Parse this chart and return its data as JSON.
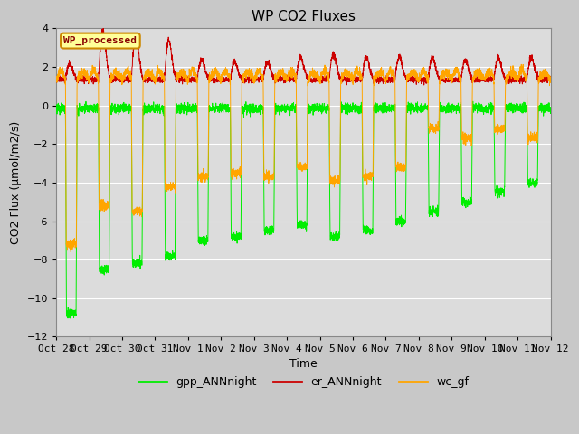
{
  "title": "WP CO2 Fluxes",
  "xlabel": "Time",
  "ylabel": "CO2 Flux (μmol/m2/s)",
  "ylim": [
    -12,
    4
  ],
  "yticks": [
    -12,
    -10,
    -8,
    -6,
    -4,
    -2,
    0,
    2,
    4
  ],
  "xlim": [
    0,
    15
  ],
  "num_points": 4320,
  "fig_bg_color": "#c8c8c8",
  "plot_bg_color": "#dcdcdc",
  "gpp_color": "#00ee00",
  "er_color": "#cc0000",
  "wc_color": "#ffa500",
  "grid_color": "#ffffff",
  "legend_label_bg": "#ffff99",
  "legend_label_border": "#cc8800",
  "legend_label_text": "WP_processed",
  "legend_label_text_color": "#880000",
  "title_fontsize": 11,
  "axis_label_fontsize": 9,
  "tick_fontsize": 8,
  "legend_fontsize": 9,
  "tick_labels": [
    "Oct 28",
    "Oct 29",
    "Oct 30",
    "Oct 31",
    "Nov 1",
    "Nov 2",
    "Nov 3",
    "Nov 4",
    "Nov 5",
    "Nov 6",
    "Nov 7",
    "Nov 8",
    "Nov 9",
    "Nov 10",
    "Nov 11",
    "Nov 12"
  ],
  "tick_positions": [
    0,
    1,
    2,
    3,
    4,
    5,
    6,
    7,
    8,
    9,
    10,
    11,
    12,
    13,
    14,
    15
  ],
  "line_width": 0.7
}
